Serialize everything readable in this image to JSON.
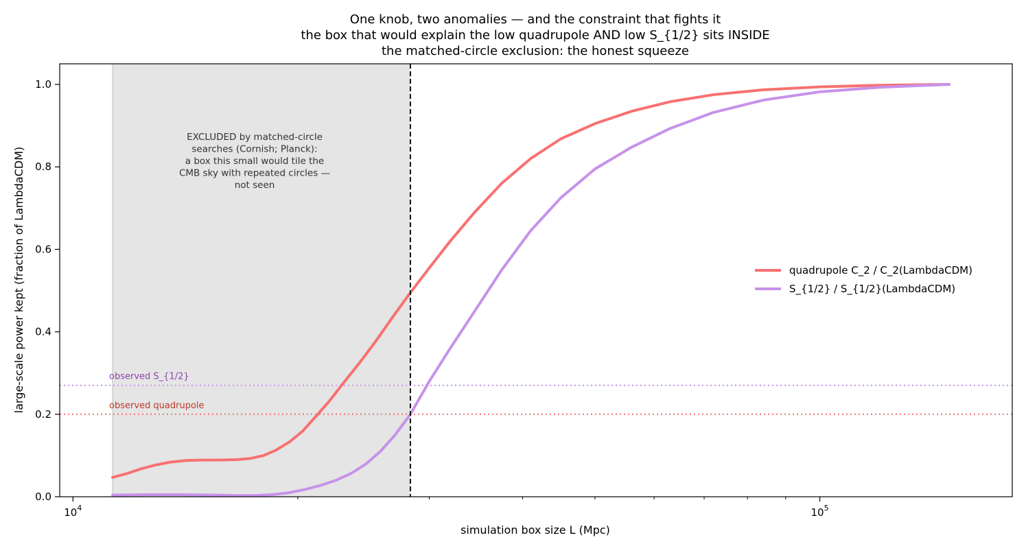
{
  "chart_data": {
    "type": "line",
    "title_lines": [
      "One knob, two anomalies — and the constraint that fights it",
      "the box that would explain the low quadrupole AND low S_{1/2} sits INSIDE",
      "the matched-circle exclusion: the honest squeeze"
    ],
    "xlabel": "simulation box size  L  (Mpc)",
    "ylabel": "large-scale power kept  (fraction of LambdaCDM)",
    "x_scale": "log",
    "xlim": [
      9600,
      181000
    ],
    "ylim": [
      0,
      1.05
    ],
    "x_major_ticks": [
      {
        "value": 10000,
        "base": "10",
        "exp": "4"
      },
      {
        "value": 100000,
        "base": "10",
        "exp": "5"
      }
    ],
    "y_ticks": [
      0.0,
      0.2,
      0.4,
      0.6,
      0.8,
      1.0
    ],
    "y_tick_labels": [
      "0.0",
      "0.2",
      "0.4",
      "0.6",
      "0.8",
      "1.0"
    ],
    "excluded_region": {
      "x_range": [
        11300,
        28300
      ],
      "color": "#e5e5e5",
      "label_lines": [
        "EXCLUDED by matched-circle",
        "searches (Cornish; Planck):",
        "a box this small would tile the",
        "CMB sky with repeated circles —",
        "not seen"
      ]
    },
    "boundary_x": 28300,
    "observed_lines": [
      {
        "label": "observed S_{1/2}",
        "y": 0.27,
        "color": "#c792ea",
        "text_color": "#8e44ad"
      },
      {
        "label": "observed quadrupole",
        "y": 0.2,
        "color": "#f47171",
        "text_color": "#c0392b"
      }
    ],
    "legend_position": "center-right",
    "series": [
      {
        "name": "quadrupole  C_2 / C_2(LambdaCDM)",
        "color": "#f87171",
        "points": [
          [
            11300,
            0.047
          ],
          [
            11800,
            0.056
          ],
          [
            12300,
            0.067
          ],
          [
            12900,
            0.077
          ],
          [
            13500,
            0.084
          ],
          [
            14200,
            0.088
          ],
          [
            14900,
            0.089
          ],
          [
            15800,
            0.089
          ],
          [
            16600,
            0.09
          ],
          [
            17300,
            0.093
          ],
          [
            18000,
            0.1
          ],
          [
            18700,
            0.113
          ],
          [
            19500,
            0.133
          ],
          [
            20300,
            0.159
          ],
          [
            21100,
            0.193
          ],
          [
            22000,
            0.23
          ],
          [
            23000,
            0.275
          ],
          [
            24200,
            0.325
          ],
          [
            25500,
            0.38
          ],
          [
            26900,
            0.44
          ],
          [
            28300,
            0.495
          ],
          [
            30000,
            0.555
          ],
          [
            32000,
            0.62
          ],
          [
            34500,
            0.69
          ],
          [
            37500,
            0.76
          ],
          [
            41000,
            0.82
          ],
          [
            45000,
            0.868
          ],
          [
            50000,
            0.905
          ],
          [
            56000,
            0.935
          ],
          [
            63000,
            0.958
          ],
          [
            72000,
            0.975
          ],
          [
            84000,
            0.987
          ],
          [
            100000,
            0.994
          ],
          [
            120000,
            0.998
          ],
          [
            149000,
            1.0
          ]
        ]
      },
      {
        "name": "S_{1/2} / S_{1/2}(LambdaCDM)",
        "color": "#c792ea",
        "points": [
          [
            11300,
            0.004
          ],
          [
            12500,
            0.005
          ],
          [
            14000,
            0.005
          ],
          [
            15500,
            0.004
          ],
          [
            16500,
            0.003
          ],
          [
            17500,
            0.003
          ],
          [
            18500,
            0.005
          ],
          [
            19500,
            0.01
          ],
          [
            20500,
            0.018
          ],
          [
            21500,
            0.028
          ],
          [
            22500,
            0.04
          ],
          [
            23600,
            0.057
          ],
          [
            24700,
            0.08
          ],
          [
            25800,
            0.11
          ],
          [
            27000,
            0.15
          ],
          [
            28300,
            0.2
          ],
          [
            30000,
            0.28
          ],
          [
            32000,
            0.36
          ],
          [
            34500,
            0.45
          ],
          [
            37500,
            0.55
          ],
          [
            41000,
            0.645
          ],
          [
            45000,
            0.725
          ],
          [
            50000,
            0.795
          ],
          [
            56000,
            0.848
          ],
          [
            63000,
            0.893
          ],
          [
            72000,
            0.932
          ],
          [
            84000,
            0.962
          ],
          [
            100000,
            0.982
          ],
          [
            120000,
            0.993
          ],
          [
            149000,
            1.0
          ]
        ]
      }
    ]
  }
}
